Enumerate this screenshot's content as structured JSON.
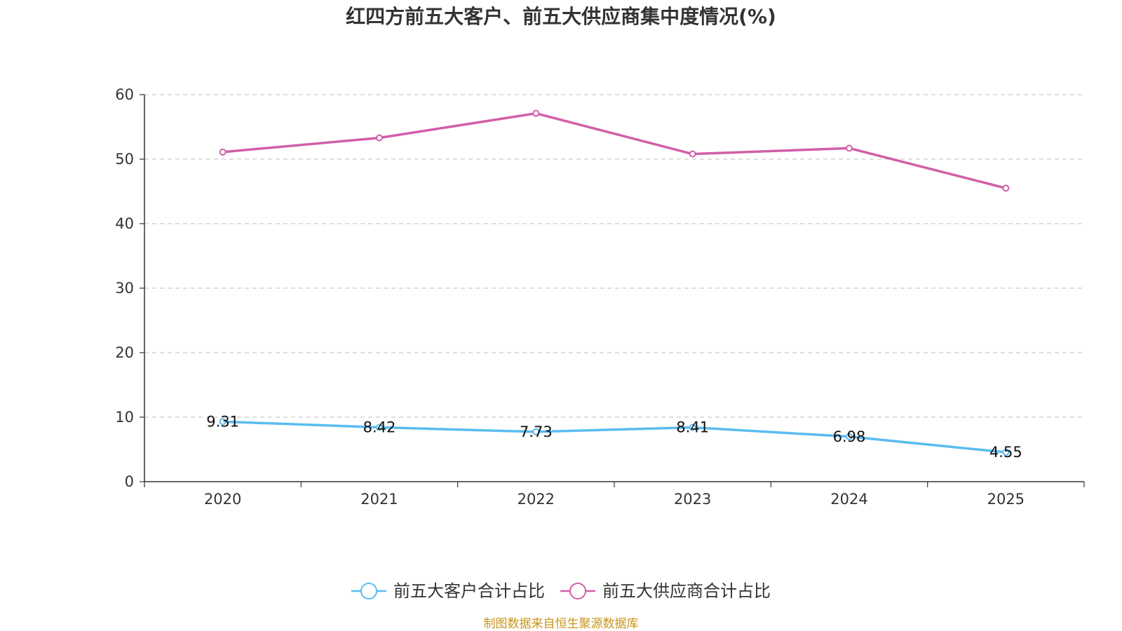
{
  "chart_data": {
    "type": "line",
    "title": "红四方前五大客户、前五大供应商集中度情况(%)",
    "categories": [
      "2020",
      "2021",
      "2022",
      "2023",
      "2024",
      "2025"
    ],
    "ylim": [
      0,
      60
    ],
    "yticks": [
      0,
      10,
      20,
      30,
      40,
      50,
      60
    ],
    "grid": true,
    "legend_position": "bottom-center",
    "series": [
      {
        "name": "前五大客户合计占比",
        "color": "#5bbcf0",
        "values": [
          9.31,
          8.42,
          7.73,
          8.41,
          6.98,
          4.55
        ],
        "labels": [
          "9.31",
          "8.42",
          "7.73",
          "8.41",
          "6.98",
          "4.55"
        ]
      },
      {
        "name": "前五大供应商合计占比",
        "color": "#d15fa8",
        "values": [
          51.1,
          53.3,
          57.1,
          50.8,
          51.7,
          45.5
        ]
      }
    ]
  },
  "source": {
    "text": "制图数据来自恒生聚源数据库",
    "color": "#c8951c"
  }
}
